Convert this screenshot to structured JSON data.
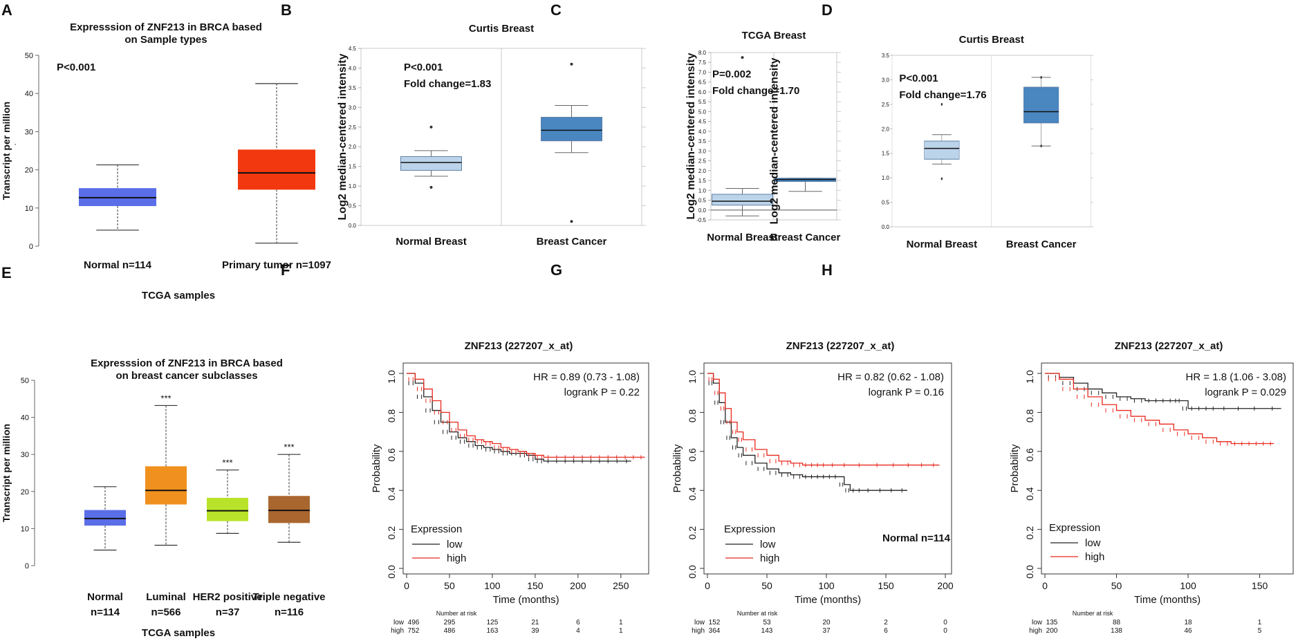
{
  "chart_data": [
    {
      "panel": "A",
      "type": "box",
      "title_lines": [
        "Expresssion of ZNF213 in BRCA based",
        "on Sample types"
      ],
      "annotation": "P<0.001",
      "ylabel": "Transcript per million",
      "xlabel": "TCGA samples",
      "ylim": [
        0,
        50
      ],
      "yticks": [
        0,
        10,
        20,
        30,
        40,
        50
      ],
      "stray_mark": "·",
      "categories": [
        {
          "label": "Normal n=114",
          "min": 4.2,
          "q1": 10.5,
          "median": 12.7,
          "q3": 15.2,
          "max": 21.3,
          "color": "#5a6ee8"
        },
        {
          "label": "Primary tumor n=1097",
          "min": 0.8,
          "q1": 14.8,
          "median": 19.2,
          "q3": 25.3,
          "max": 42.6,
          "color": "#f2380e"
        }
      ]
    },
    {
      "panel": "B",
      "type": "box",
      "title": "Curtis Breast",
      "annotation_lines": [
        "P<0.001",
        "Fold change=1.83"
      ],
      "ylabel": "Log2 median-centered intensity",
      "ylim": [
        0,
        4.5
      ],
      "yticks": [
        "0.0",
        "0.5",
        "1.0",
        "1.5",
        "2.0",
        "2.5",
        "3.0",
        "3.5",
        "4.0",
        "4.5"
      ],
      "categories": [
        {
          "label": "Normal Breast",
          "min": 1.25,
          "q1": 1.4,
          "median": 1.6,
          "q3": 1.75,
          "max": 1.9,
          "outliers": [
            2.5,
            0.97
          ],
          "color": "#bcd4ea"
        },
        {
          "label": "Breast Cancer",
          "min": 1.85,
          "q1": 2.15,
          "median": 2.42,
          "q3": 2.75,
          "max": 3.05,
          "outliers": [
            4.1,
            0.1
          ],
          "color": "#4a86c0"
        }
      ]
    },
    {
      "panel": "C",
      "type": "box",
      "title": "TCGA Breast",
      "annotation_lines": [
        "P=0.002",
        "Fold change=1.70"
      ],
      "ylabel": "Log2 median-centered intensity",
      "ylim": [
        -0.5,
        8.0
      ],
      "yticks": [
        "-0.5",
        "0.0",
        "0.5",
        "1.0",
        "1.5",
        "2.0",
        "2.5",
        "3.0",
        "3.5",
        "4.0",
        "4.5",
        "5.0",
        "5.5",
        "6.0",
        "6.5",
        "7.0",
        "7.5",
        "8.0"
      ],
      "categories": [
        {
          "label": "Normal Breast",
          "min": -0.3,
          "q1": 0.25,
          "median": 0.45,
          "q3": 0.8,
          "max": 1.1,
          "outliers": [
            7.75
          ],
          "color": "#bcd4ea"
        },
        {
          "label": "Breast Cancer",
          "min": 0.95,
          "q1": 1.45,
          "median": 1.55,
          "q3": 1.62,
          "max": 1.62,
          "outliers": [],
          "color": "#4a86c0"
        }
      ]
    },
    {
      "panel": "D",
      "type": "box",
      "title": "Curtis  Breast",
      "annotation_lines": [
        "P<0.001",
        "Fold change=1.76"
      ],
      "ylabel": "Log2 median-centered intensity",
      "ylim": [
        0,
        3.5
      ],
      "yticks": [
        "0.0",
        "0.5",
        "1.0",
        "1.5",
        "2.0",
        "2.5",
        "3.0",
        "3.5"
      ],
      "categories": [
        {
          "label": "Normal Breast",
          "min": 1.28,
          "q1": 1.38,
          "median": 1.6,
          "q3": 1.75,
          "max": 1.88,
          "outliers": [
            2.5,
            0.98
          ],
          "color": "#bcd4ea"
        },
        {
          "label": "Breast Cancer",
          "min": 1.65,
          "q1": 2.12,
          "median": 2.35,
          "q3": 2.85,
          "max": 3.05,
          "outliers": [
            3.05,
            1.65
          ],
          "color": "#4a86c0"
        }
      ]
    },
    {
      "panel": "E",
      "type": "box",
      "title_lines": [
        "Expresssion of ZNF213 in BRCA based",
        "on breast cancer subclasses"
      ],
      "ylabel": "Transcript per million",
      "xlabel": "TCGA samples",
      "ylim": [
        0,
        50
      ],
      "yticks": [
        0,
        10,
        20,
        30,
        40,
        50
      ],
      "categories": [
        {
          "label_lines": [
            "Normal",
            "n=114"
          ],
          "min": 4.2,
          "q1": 10.8,
          "median": 12.7,
          "q3": 15.0,
          "max": 21.3,
          "color": "#5a6ee8",
          "sig": ""
        },
        {
          "label_lines": [
            "Luminal",
            "n=566"
          ],
          "min": 5.5,
          "q1": 16.5,
          "median": 20.3,
          "q3": 26.8,
          "max": 43.2,
          "color": "#f0901e",
          "sig": "***"
        },
        {
          "label_lines": [
            "HER2 positive",
            "n=37"
          ],
          "min": 8.7,
          "q1": 12.0,
          "median": 14.8,
          "q3": 18.3,
          "max": 25.8,
          "color": "#b9e32a",
          "sig": "***"
        },
        {
          "label_lines": [
            "Triple negative",
            "n=116"
          ],
          "min": 6.3,
          "q1": 11.5,
          "median": 14.9,
          "q3": 18.8,
          "max": 30.0,
          "color": "#a9662e",
          "sig": "***"
        }
      ]
    },
    {
      "panel": "F",
      "type": "line",
      "kind": "kaplan-meier",
      "title": "ZNF213 (227207_x_at)",
      "xlabel": "Time (months)",
      "ylabel": "Probability",
      "xlim": [
        0,
        280
      ],
      "ylim": [
        0,
        1.0
      ],
      "xticks": [
        0,
        50,
        100,
        150,
        200,
        250
      ],
      "yticks": [
        "0.0",
        "0.2",
        "0.4",
        "0.6",
        "0.8",
        "1.0"
      ],
      "hr_text": "HR = 0.89 (0.73 - 1.08)",
      "p_text": "logrank P = 0.22",
      "legend_title": "Expression",
      "series": [
        {
          "name": "low",
          "color": "#222222",
          "x": [
            0,
            10,
            20,
            30,
            40,
            50,
            60,
            70,
            80,
            90,
            100,
            110,
            120,
            130,
            140,
            150,
            160,
            180,
            200,
            220,
            240,
            262
          ],
          "y": [
            1.0,
            0.95,
            0.88,
            0.81,
            0.75,
            0.7,
            0.67,
            0.65,
            0.63,
            0.62,
            0.61,
            0.6,
            0.59,
            0.59,
            0.58,
            0.56,
            0.55,
            0.55,
            0.55,
            0.55,
            0.55,
            0.55
          ]
        },
        {
          "name": "high",
          "color": "#e8281c",
          "x": [
            0,
            10,
            20,
            30,
            40,
            50,
            60,
            70,
            80,
            90,
            100,
            110,
            120,
            130,
            140,
            150,
            160,
            180,
            200,
            220,
            240,
            260,
            278
          ],
          "y": [
            1.0,
            0.97,
            0.92,
            0.86,
            0.8,
            0.75,
            0.71,
            0.68,
            0.66,
            0.65,
            0.64,
            0.62,
            0.61,
            0.6,
            0.59,
            0.58,
            0.57,
            0.57,
            0.57,
            0.57,
            0.57,
            0.57,
            0.57
          ]
        }
      ],
      "risk": {
        "header": "Number at risk",
        "rows": [
          {
            "name": "low",
            "color": "#222222",
            "values": [
              "496",
              "295",
              "125",
              "21",
              "6",
              "1"
            ]
          },
          {
            "name": "high",
            "color": "#e8281c",
            "values": [
              "752",
              "486",
              "163",
              "39",
              "4",
              "1"
            ]
          }
        ]
      }
    },
    {
      "panel": "G",
      "type": "line",
      "kind": "kaplan-meier",
      "title": "ZNF213 (227207_x_at)",
      "xlabel": "Time (months)",
      "ylabel": "Probability",
      "xlim": [
        0,
        200
      ],
      "ylim": [
        0,
        1.0
      ],
      "xticks": [
        0,
        50,
        100,
        150,
        200
      ],
      "yticks": [
        "0.0",
        "0.2",
        "0.4",
        "0.6",
        "0.8",
        "1.0"
      ],
      "hr_text": "HR = 0.82 (0.62 - 1.08)",
      "p_text": "logrank P = 0.16",
      "legend_title": "Expression",
      "note": "Normal n=114",
      "series": [
        {
          "name": "low",
          "color": "#222222",
          "x": [
            0,
            5,
            10,
            15,
            20,
            25,
            30,
            40,
            50,
            60,
            70,
            80,
            90,
            100,
            110,
            115,
            120,
            130,
            150,
            168
          ],
          "y": [
            1.0,
            0.95,
            0.85,
            0.75,
            0.67,
            0.62,
            0.58,
            0.54,
            0.51,
            0.49,
            0.48,
            0.47,
            0.47,
            0.47,
            0.47,
            0.43,
            0.4,
            0.4,
            0.4,
            0.4
          ]
        },
        {
          "name": "high",
          "color": "#e8281c",
          "x": [
            0,
            5,
            10,
            15,
            20,
            25,
            30,
            40,
            50,
            60,
            70,
            80,
            90,
            100,
            120,
            150,
            175,
            195
          ],
          "y": [
            1.0,
            0.97,
            0.9,
            0.82,
            0.75,
            0.7,
            0.66,
            0.61,
            0.58,
            0.55,
            0.54,
            0.53,
            0.53,
            0.53,
            0.53,
            0.53,
            0.53,
            0.53
          ]
        }
      ],
      "risk": {
        "header": "Number at risk",
        "rows": [
          {
            "name": "low",
            "color": "#222222",
            "values": [
              "152",
              "53",
              "20",
              "2",
              "0"
            ]
          },
          {
            "name": "high",
            "color": "#e8281c",
            "values": [
              "364",
              "143",
              "37",
              "6",
              "0"
            ]
          }
        ]
      }
    },
    {
      "panel": "H",
      "type": "line",
      "kind": "kaplan-meier",
      "title": "ZNF213 (227207_x_at)",
      "xlabel": "Time (months)",
      "ylabel": "Probability",
      "xlim": [
        0,
        170
      ],
      "ylim": [
        0,
        1.0
      ],
      "xticks": [
        0,
        50,
        100,
        150
      ],
      "yticks": [
        "0.0",
        "0.2",
        "0.4",
        "0.6",
        "0.8",
        "1.0"
      ],
      "hr_text": "HR = 1.8 (1.06 - 3.08)",
      "p_text": "logrank P = 0.029",
      "legend_title": "Expression",
      "series": [
        {
          "name": "low",
          "color": "#222222",
          "x": [
            0,
            10,
            20,
            30,
            40,
            50,
            60,
            70,
            80,
            90,
            95,
            100,
            110,
            120,
            140,
            165
          ],
          "y": [
            1.0,
            0.98,
            0.95,
            0.92,
            0.9,
            0.88,
            0.87,
            0.86,
            0.86,
            0.86,
            0.86,
            0.82,
            0.82,
            0.82,
            0.82,
            0.82
          ]
        },
        {
          "name": "high",
          "color": "#e8281c",
          "x": [
            0,
            10,
            20,
            30,
            40,
            50,
            60,
            70,
            80,
            90,
            100,
            110,
            120,
            130,
            140,
            150,
            160
          ],
          "y": [
            1.0,
            0.97,
            0.92,
            0.88,
            0.84,
            0.81,
            0.78,
            0.76,
            0.74,
            0.71,
            0.69,
            0.67,
            0.65,
            0.64,
            0.64,
            0.64,
            0.64
          ]
        }
      ],
      "risk": {
        "header": "Number at risk",
        "rows": [
          {
            "name": "low",
            "color": "#222222",
            "values": [
              "135",
              "88",
              "18",
              "1"
            ]
          },
          {
            "name": "high",
            "color": "#e8281c",
            "values": [
              "200",
              "138",
              "46",
              "5"
            ]
          }
        ]
      }
    }
  ]
}
